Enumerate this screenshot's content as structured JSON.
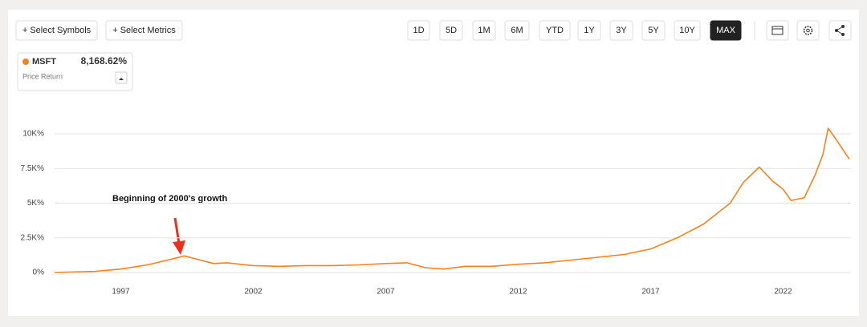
{
  "toolbar": {
    "symbols_button": "+ Select Symbols",
    "metrics_button": "+ Select Metrics",
    "ranges": [
      "1D",
      "5D",
      "1M",
      "6M",
      "YTD",
      "1Y",
      "3Y",
      "5Y",
      "10Y",
      "MAX"
    ],
    "active_range": "MAX"
  },
  "legend_box": {
    "symbol": "MSFT",
    "return": "8,168.62%",
    "metric": "Price Return"
  },
  "chart_data": {
    "type": "line",
    "annotation": "Beginning of 2000's growth",
    "x": [
      1994.5,
      1995,
      1996,
      1997,
      1998,
      1999,
      1999.4,
      2000,
      2000.5,
      2001,
      2002,
      2003,
      2004,
      2005,
      2006,
      2007,
      2007.8,
      2008.5,
      2009.2,
      2010,
      2011,
      2012,
      2013,
      2014,
      2015,
      2016,
      2017,
      2018,
      2019,
      2020,
      2020.5,
      2021.1,
      2021.6,
      2022,
      2022.3,
      2022.8,
      2023.2,
      2023.5,
      2023.7,
      2024,
      2024.5
    ],
    "series": [
      {
        "name": "MSFT",
        "color": "#f5821f",
        "values": [
          0,
          30,
          80,
          250,
          550,
          1000,
          1200,
          900,
          650,
          700,
          500,
          450,
          500,
          500,
          550,
          650,
          700,
          350,
          250,
          450,
          450,
          600,
          700,
          900,
          1100,
          1300,
          1700,
          2500,
          3500,
          5000,
          6500,
          7600,
          6600,
          6000,
          5200,
          5400,
          7000,
          8500,
          10400,
          9600,
          8168.62
        ]
      }
    ],
    "xlim": [
      1994.5,
      2024.5
    ],
    "xticks": [
      1997,
      2002,
      2007,
      2012,
      2017,
      2022
    ],
    "ylim": [
      -200,
      12000
    ],
    "yticks": [
      {
        "value": 0,
        "label": "0%"
      },
      {
        "value": 2500,
        "label": "2.5K%"
      },
      {
        "value": 5000,
        "label": "5K%"
      },
      {
        "value": 7500,
        "label": "7.5K%"
      },
      {
        "value": 10000,
        "label": "10K%"
      }
    ],
    "grid": true
  }
}
